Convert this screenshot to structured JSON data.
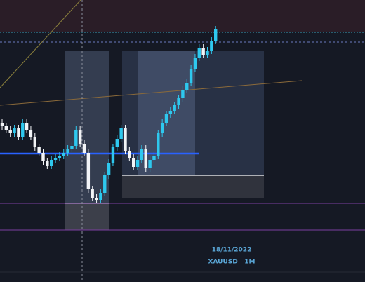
{
  "chart_data": {
    "type": "candlestick",
    "annotations": [
      "18/11/2022",
      "XAUUSD | 1M"
    ],
    "up_color": "#2ec8ee",
    "down_color": "#f2f4f7",
    "ylim": [
      0,
      402
    ],
    "open": [
      227,
      222,
      217,
      212,
      219,
      207,
      227,
      217,
      207,
      192,
      184,
      172,
      166,
      174,
      177,
      180,
      184,
      190,
      194,
      217,
      197,
      184,
      132,
      120,
      117,
      127,
      152,
      170,
      192,
      204,
      219,
      187,
      177,
      164,
      174,
      190,
      162,
      174,
      180,
      212,
      227,
      239,
      244,
      252,
      262,
      274,
      284,
      304,
      320,
      334,
      324,
      330,
      344
    ],
    "high": [
      232,
      227,
      222,
      224,
      224,
      232,
      232,
      222,
      212,
      197,
      189,
      177,
      179,
      182,
      185,
      189,
      195,
      199,
      222,
      222,
      202,
      189,
      137,
      125,
      132,
      157,
      175,
      197,
      209,
      224,
      224,
      192,
      182,
      179,
      195,
      195,
      179,
      185,
      217,
      232,
      244,
      249,
      257,
      267,
      279,
      289,
      309,
      325,
      339,
      339,
      335,
      349,
      365
    ],
    "low": [
      217,
      212,
      207,
      207,
      202,
      202,
      212,
      202,
      187,
      179,
      167,
      161,
      161,
      169,
      172,
      175,
      179,
      185,
      189,
      192,
      179,
      127,
      115,
      112,
      112,
      122,
      147,
      165,
      187,
      199,
      182,
      172,
      159,
      159,
      169,
      157,
      157,
      169,
      175,
      207,
      222,
      234,
      239,
      247,
      257,
      269,
      279,
      299,
      315,
      319,
      319,
      325,
      339
    ],
    "close": [
      222,
      217,
      212,
      219,
      207,
      227,
      217,
      207,
      192,
      184,
      172,
      166,
      174,
      177,
      180,
      184,
      190,
      194,
      217,
      197,
      184,
      132,
      120,
      117,
      127,
      152,
      170,
      192,
      204,
      219,
      187,
      177,
      164,
      174,
      190,
      162,
      174,
      180,
      212,
      227,
      239,
      244,
      252,
      262,
      274,
      284,
      304,
      320,
      334,
      324,
      330,
      344,
      360
    ]
  }
}
